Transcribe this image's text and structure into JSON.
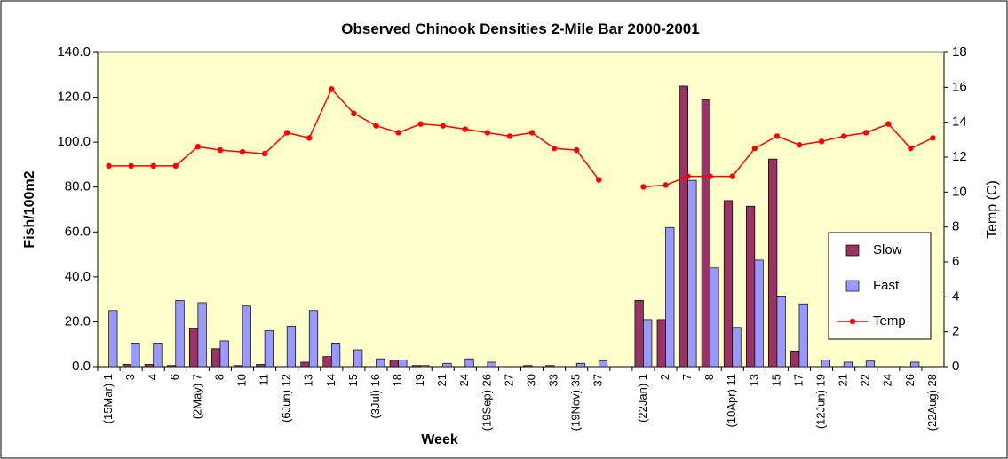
{
  "chart_data": {
    "type": "bar",
    "title": "Observed Chinook Densities 2-Mile Bar 2000-2001",
    "y_label": "Fish/100m2",
    "y2_label": "Temp (C)",
    "x_label": "Week",
    "categories": [
      "(15Mar) 1",
      "3",
      "4",
      "6",
      "(2May) 7",
      "8",
      "10",
      "11",
      "(6Jun) 12",
      "13",
      "14",
      "15",
      "(3Jul) 16",
      "18",
      "19",
      "21",
      "24",
      "(19Sep) 26",
      "27",
      "30",
      "33",
      "(19Nov) 35",
      "37",
      null,
      "(22Jan) 1",
      "2",
      "7",
      "8",
      "(10Apr) 11",
      "13",
      "15",
      "17",
      "(12Jun) 19",
      "21",
      "22",
      "24",
      "26",
      "(22Aug) 28"
    ],
    "series": [
      {
        "name": "Slow",
        "type": "bar",
        "color": "#993366",
        "values": [
          0,
          1,
          1,
          0.5,
          17,
          8,
          0.5,
          1,
          0,
          2,
          4.5,
          0,
          0,
          3,
          0.5,
          0,
          0,
          0,
          0,
          0.5,
          0.5,
          0,
          0,
          null,
          29.5,
          21,
          125,
          119,
          74,
          71.5,
          92.5,
          7,
          0,
          0,
          0,
          0,
          0,
          0
        ]
      },
      {
        "name": "Fast",
        "type": "bar",
        "color": "#9999FF",
        "values": [
          25,
          10.5,
          10.5,
          29.5,
          28.5,
          11.5,
          27,
          16,
          18,
          25,
          10.5,
          7.5,
          3.5,
          3,
          0.5,
          1.5,
          3.5,
          2,
          0,
          0,
          0,
          1.5,
          2.5,
          null,
          21,
          62,
          83,
          44,
          17.5,
          47.5,
          31.5,
          28,
          3,
          2,
          2.5,
          0,
          2,
          0
        ]
      },
      {
        "name": "Temp",
        "type": "line",
        "axis": "y2",
        "color": "#FF0000",
        "values": [
          11.5,
          11.5,
          11.5,
          11.5,
          12.6,
          12.4,
          12.3,
          12.2,
          13.4,
          13.1,
          15.9,
          14.5,
          13.8,
          13.4,
          13.9,
          13.8,
          13.6,
          13.4,
          13.2,
          13.4,
          12.5,
          12.4,
          10.7,
          null,
          10.3,
          10.4,
          10.9,
          10.9,
          10.9,
          12.5,
          13.2,
          12.7,
          12.9,
          13.2,
          13.4,
          13.9,
          12.5,
          13.1
        ]
      }
    ],
    "ylim": [
      0,
      140
    ],
    "yticks": [
      {
        "value": 0,
        "label": "0.0"
      },
      {
        "value": 20,
        "label": "20.0"
      },
      {
        "value": 40,
        "label": "40.0"
      },
      {
        "value": 60,
        "label": "60.0"
      },
      {
        "value": 80,
        "label": "80.0"
      },
      {
        "value": 100,
        "label": "100.0"
      },
      {
        "value": 120,
        "label": "120.0"
      },
      {
        "value": 140,
        "label": "140.0"
      }
    ],
    "y2lim": [
      0,
      18
    ],
    "y2ticks": [
      0,
      2,
      4,
      6,
      8,
      10,
      12,
      14,
      16,
      18
    ],
    "grid": false,
    "legend": "right",
    "plot_background": "#FFFFCC"
  }
}
